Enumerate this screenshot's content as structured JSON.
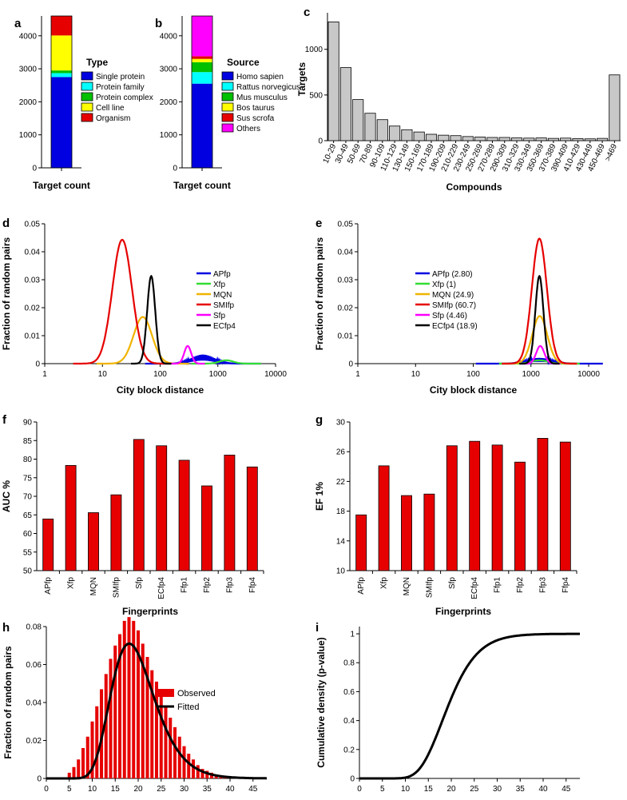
{
  "colors": {
    "red": "#e60000",
    "blue": "#0000e0",
    "cyan": "#00ffff",
    "green": "#00c000",
    "yellow": "#ffff00",
    "magenta": "#ff00ff",
    "orange": "#f0b400",
    "black": "#000000",
    "grey": "#c8c8c8",
    "bright_green": "#33dd33"
  },
  "chart_data": [
    {
      "id": "a",
      "panel_label": "a",
      "type": "bar",
      "stacked": true,
      "xlabel": "Target count",
      "ylabel": "",
      "ylim": [
        0,
        4600
      ],
      "yticks": [
        0,
        1000,
        2000,
        3000,
        4000
      ],
      "legend_title": "Type",
      "series": [
        {
          "name": "Single protein",
          "value": 2750,
          "color": "#0000e0"
        },
        {
          "name": "Protein family",
          "value": 120,
          "color": "#00ffff"
        },
        {
          "name": "Protein complex",
          "value": 80,
          "color": "#00c000"
        },
        {
          "name": "Cell line",
          "value": 1060,
          "color": "#ffff00"
        },
        {
          "name": "Organism",
          "value": 590,
          "color": "#e60000"
        }
      ]
    },
    {
      "id": "b",
      "panel_label": "b",
      "type": "bar",
      "stacked": true,
      "xlabel": "Target count",
      "ylabel": "",
      "ylim": [
        0,
        4600
      ],
      "yticks": [
        0,
        1000,
        2000,
        3000,
        4000
      ],
      "legend_title": "Source",
      "series": [
        {
          "name": "Homo sapien",
          "value": 2550,
          "color": "#0000e0"
        },
        {
          "name": "Rattus norvegicus",
          "value": 350,
          "color": "#00ffff"
        },
        {
          "name": "Mus musculus",
          "value": 300,
          "color": "#00c000"
        },
        {
          "name": "Bos taurus",
          "value": 100,
          "color": "#ffff00"
        },
        {
          "name": "Sus scrofa",
          "value": 80,
          "color": "#e60000"
        },
        {
          "name": "Others",
          "value": 1220,
          "color": "#ff00ff"
        }
      ]
    },
    {
      "id": "c",
      "panel_label": "c",
      "type": "bar",
      "xlabel": "Compounds",
      "ylabel": "Targets",
      "ylim": [
        0,
        1400
      ],
      "yticks": [
        0,
        500,
        1000
      ],
      "categories": [
        "10-29",
        "30-49",
        "50-69",
        "70-89",
        "90-109",
        "110-129",
        "130-149",
        "150-169",
        "170-189",
        "190-209",
        "210-229",
        "230-249",
        "250-269",
        "270-289",
        "290-309",
        "310-329",
        "330-349",
        "350-369",
        "370-389",
        "390-409",
        "410-429",
        "430-449",
        "450-469",
        ">469"
      ],
      "values": [
        1300,
        800,
        450,
        300,
        230,
        160,
        120,
        95,
        70,
        60,
        55,
        45,
        40,
        35,
        35,
        30,
        28,
        30,
        25,
        28,
        22,
        20,
        25,
        720
      ]
    },
    {
      "id": "d",
      "panel_label": "d",
      "type": "line",
      "xscale": "log",
      "xlabel": "City block distance",
      "ylabel": "Fraction of random pairs",
      "xlim": [
        1,
        10000
      ],
      "ylim": [
        0,
        0.05
      ],
      "xticks": [
        1,
        10,
        100,
        1000,
        10000
      ],
      "xtick_labels": [
        "1",
        "10",
        "100",
        "1000",
        "10000"
      ],
      "yticks": [
        0,
        0.01,
        0.02,
        0.03,
        0.04,
        0.05
      ],
      "ytick_labels": [
        "0",
        "0.01",
        "0.02",
        "0.03",
        "0.04",
        "0.05"
      ],
      "legend_position": "right",
      "series": [
        {
          "name": "APfp",
          "color": "#0000e0",
          "peak_x": 550,
          "width_log10": 0.2,
          "peak_y": 0.0032,
          "spiky": true
        },
        {
          "name": "Xfp",
          "color": "#33dd33",
          "peak_x": 1400,
          "width_log10": 0.12,
          "peak_y": 0.0012
        },
        {
          "name": "MQN",
          "color": "#f0b400",
          "peak_x": 50,
          "width_log10": 0.16,
          "peak_y": 0.0167
        },
        {
          "name": "SMIfp",
          "color": "#e60000",
          "peak_x": 22,
          "width_log10": 0.17,
          "peak_y": 0.0443
        },
        {
          "name": "Sfp",
          "color": "#ff00ff",
          "peak_x": 300,
          "width_log10": 0.06,
          "peak_y": 0.0063
        },
        {
          "name": "ECfp4",
          "color": "#000000",
          "peak_x": 70,
          "width_log10": 0.07,
          "peak_y": 0.0313
        }
      ]
    },
    {
      "id": "e",
      "panel_label": "e",
      "type": "line",
      "xscale": "log",
      "xlabel": "City block distance",
      "ylabel": "Fraction of random pairs",
      "xlim": [
        1,
        10000
      ],
      "ylim": [
        0,
        0.05
      ],
      "xticks": [
        1,
        10,
        100,
        1000,
        10000
      ],
      "xtick_labels": [
        "1",
        "10",
        "100",
        "1000",
        "10000"
      ],
      "yticks": [
        0,
        0.01,
        0.02,
        0.03,
        0.04,
        0.05
      ],
      "ytick_labels": [
        "0",
        "0.01",
        "0.02",
        "0.03",
        "0.04",
        "0.05"
      ],
      "legend_position": "left",
      "series": [
        {
          "name": "APfp (2.80)",
          "color": "#0000e0",
          "peak_x": 1400,
          "width_log10": 0.22,
          "peak_y": 0.002,
          "spiky": true
        },
        {
          "name": "Xfp (1)",
          "color": "#33dd33",
          "peak_x": 1400,
          "width_log10": 0.14,
          "peak_y": 0.0012
        },
        {
          "name": "MQN (24.9)",
          "color": "#f0b400",
          "peak_x": 1420,
          "width_log10": 0.13,
          "peak_y": 0.017
        },
        {
          "name": "SMIfp (60.7)",
          "color": "#e60000",
          "peak_x": 1400,
          "width_log10": 0.13,
          "peak_y": 0.0447
        },
        {
          "name": "Sfp (4.46)",
          "color": "#ff00ff",
          "peak_x": 1450,
          "width_log10": 0.07,
          "peak_y": 0.0063
        },
        {
          "name": "ECfp4 (18.9)",
          "color": "#000000",
          "peak_x": 1400,
          "width_log10": 0.07,
          "peak_y": 0.0313
        }
      ]
    },
    {
      "id": "f",
      "panel_label": "f",
      "type": "bar",
      "xlabel": "Fingerprints",
      "ylabel": "AUC %",
      "ylim": [
        50,
        90
      ],
      "yticks": [
        50,
        55,
        60,
        65,
        70,
        75,
        80,
        85,
        90
      ],
      "categories": [
        "APfp",
        "Xfp",
        "MQN",
        "SMIfp",
        "Sfp",
        "ECfp4",
        "Ffp1",
        "Ffp2",
        "Ffp3",
        "Ffp4"
      ],
      "values": [
        63.9,
        78.3,
        65.6,
        70.4,
        85.3,
        83.6,
        79.7,
        72.8,
        81.1,
        77.9
      ]
    },
    {
      "id": "g",
      "panel_label": "g",
      "type": "bar",
      "xlabel": "Fingerprints",
      "ylabel": "EF 1%",
      "ylim": [
        10,
        30
      ],
      "yticks": [
        10,
        14,
        18,
        22,
        26,
        30
      ],
      "categories": [
        "APfp",
        "Xfp",
        "MQN",
        "SMIfp",
        "Sfp",
        "ECfp4",
        "Ffp1",
        "Ffp2",
        "Ffp3",
        "Ffp4"
      ],
      "values": [
        17.5,
        24.1,
        20.1,
        20.3,
        26.8,
        27.4,
        26.9,
        24.6,
        27.8,
        27.3
      ]
    },
    {
      "id": "h",
      "panel_label": "h",
      "type": "bar+line",
      "xlabel": "City block distance",
      "ylabel": "Fraction of random pairs",
      "xlim": [
        0,
        48
      ],
      "ylim": [
        0,
        0.08
      ],
      "xticks": [
        0,
        5,
        10,
        15,
        20,
        25,
        30,
        35,
        40,
        45
      ],
      "yticks": [
        0,
        0.02,
        0.04,
        0.06,
        0.08
      ],
      "ytick_labels": [
        "0",
        "0.02",
        "0.04",
        "0.06",
        "0.08"
      ],
      "legend": [
        "Observed",
        "Fitted"
      ],
      "legend_position": "right",
      "x": [
        5,
        6,
        7,
        8,
        9,
        10,
        11,
        12,
        13,
        14,
        15,
        16,
        17,
        18,
        19,
        20,
        21,
        22,
        23,
        24,
        25,
        26,
        27,
        28,
        29,
        30,
        31,
        32,
        33,
        34,
        35,
        36,
        37,
        38,
        39,
        40
      ],
      "values": [
        0.003,
        0.006,
        0.01,
        0.016,
        0.022,
        0.03,
        0.038,
        0.047,
        0.055,
        0.063,
        0.07,
        0.076,
        0.083,
        0.085,
        0.083,
        0.078,
        0.071,
        0.064,
        0.057,
        0.051,
        0.045,
        0.038,
        0.032,
        0.027,
        0.022,
        0.017,
        0.013,
        0.01,
        0.007,
        0.005,
        0.004,
        0.003,
        0.002,
        0.0015,
        0.001,
        0.0007
      ],
      "fit": {
        "type": "lognormal",
        "mu": 2.96,
        "sigma": 0.26,
        "peak_y": 0.071
      }
    },
    {
      "id": "i",
      "panel_label": "i",
      "type": "line",
      "xlabel": "City block distance",
      "ylabel": "Cumulative density (p-value)",
      "xlim": [
        0,
        48
      ],
      "ylim": [
        0,
        1.05
      ],
      "xticks": [
        0,
        5,
        10,
        15,
        20,
        25,
        30,
        35,
        40,
        45
      ],
      "yticks": [
        0,
        0.2,
        0.4,
        0.6,
        0.8,
        1
      ],
      "ytick_labels": [
        "0",
        "0.2",
        "0.4",
        "0.6",
        "0.8",
        "1"
      ],
      "fit": {
        "type": "lognormal_cdf",
        "mu": 2.96,
        "sigma": 0.26
      }
    }
  ]
}
